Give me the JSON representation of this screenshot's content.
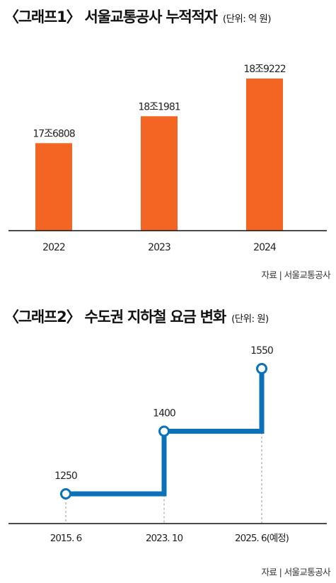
{
  "charts": [
    {
      "title": "〈그래프1〉 서울교통공사 누적적자",
      "unit": "(단위: 억 원)",
      "source": "자료 | 서울교통공사"
    },
    {
      "title": "〈그래프2〉 수도권 지하철 요금 변화",
      "unit": "(단위: 원)",
      "source": "자료 | 서울교통공사"
    }
  ],
  "colors": {
    "bar": "#f26522",
    "line": "#0b72b9",
    "axis": "#111111",
    "dashed": "#999999"
  },
  "chart_data": [
    {
      "type": "bar",
      "title": "〈그래프1〉 서울교통공사 누적적자",
      "unit": "억 원",
      "categories": [
        "2022",
        "2023",
        "2024"
      ],
      "values": [
        176808,
        181981,
        189222
      ],
      "value_labels": [
        "17조6808",
        "18조1981",
        "18조9222"
      ],
      "legend": "none",
      "grid": false
    },
    {
      "type": "line",
      "step": true,
      "title": "〈그래프2〉 수도권 지하철 요금 변화",
      "unit": "원",
      "x": [
        "2015. 6",
        "2023. 10",
        "2025. 6(예정)"
      ],
      "values": [
        1250,
        1400,
        1550
      ],
      "value_labels": [
        "1250",
        "1400",
        "1550"
      ],
      "legend": "none",
      "grid": false
    }
  ]
}
